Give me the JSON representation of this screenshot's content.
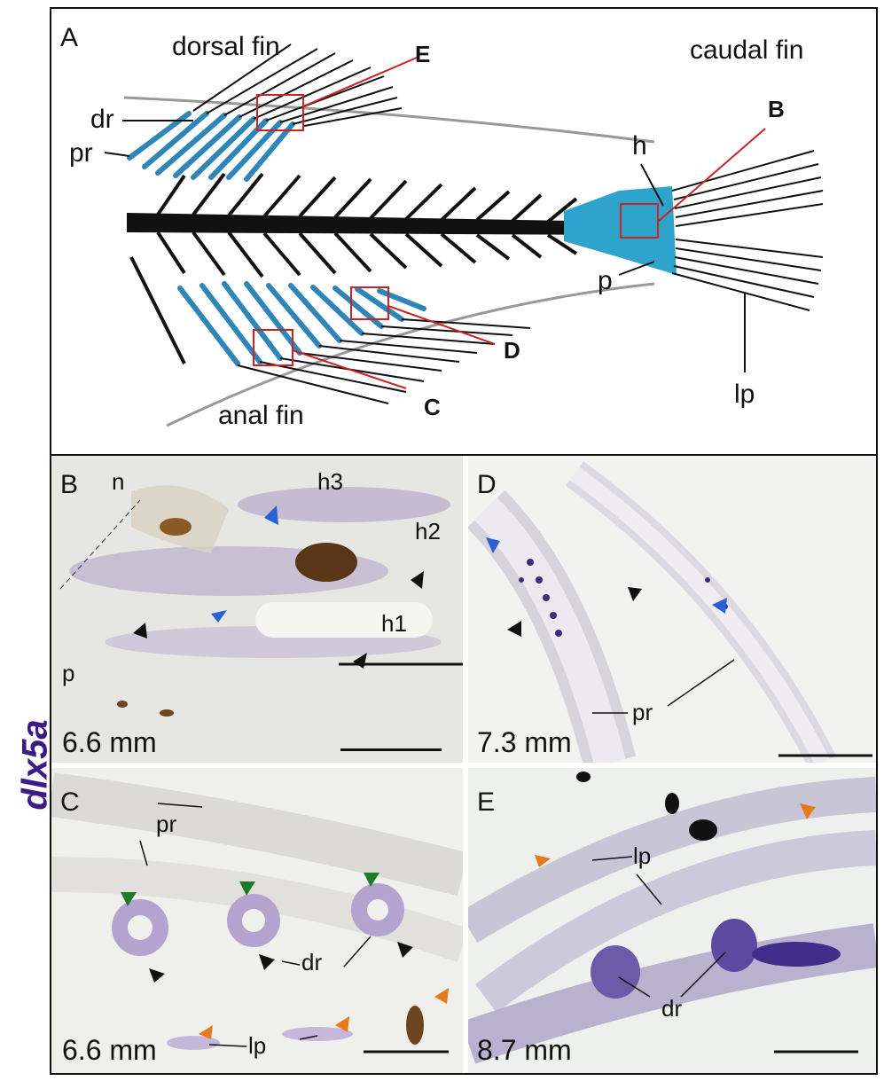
{
  "side_label": "dlx5a",
  "panel_a": {
    "letter": "A",
    "dorsal_fin": "dorsal fin",
    "caudal_fin": "caudal fin",
    "anal_fin": "anal fin",
    "dr": "dr",
    "pr": "pr",
    "h": "h",
    "p": "p",
    "lp": "lp",
    "box_b": "B",
    "box_c": "C",
    "box_d": "D",
    "box_e": "E"
  },
  "panel_b": {
    "letter": "B",
    "n": "n",
    "h3": "h3",
    "h2": "h2",
    "h1": "h1",
    "p": "p",
    "size": "6.6 mm"
  },
  "panel_c": {
    "letter": "C",
    "pr": "pr",
    "dr": "dr",
    "lp": "lp",
    "size": "6.6 mm"
  },
  "panel_d": {
    "letter": "D",
    "pr": "pr",
    "size": "7.3 mm"
  },
  "panel_e": {
    "letter": "E",
    "lp": "lp",
    "dr": "dr",
    "size": "8.7 mm"
  },
  "colors": {
    "blue_cartilage": "#2e86b8",
    "red_box": "#cc2222",
    "stain_purple": "#5a3a9a",
    "arrow_blue": "#2a5fd6",
    "arrow_black": "#111111",
    "arrow_green": "#1f7a2a",
    "arrow_orange": "#e57a1e"
  }
}
